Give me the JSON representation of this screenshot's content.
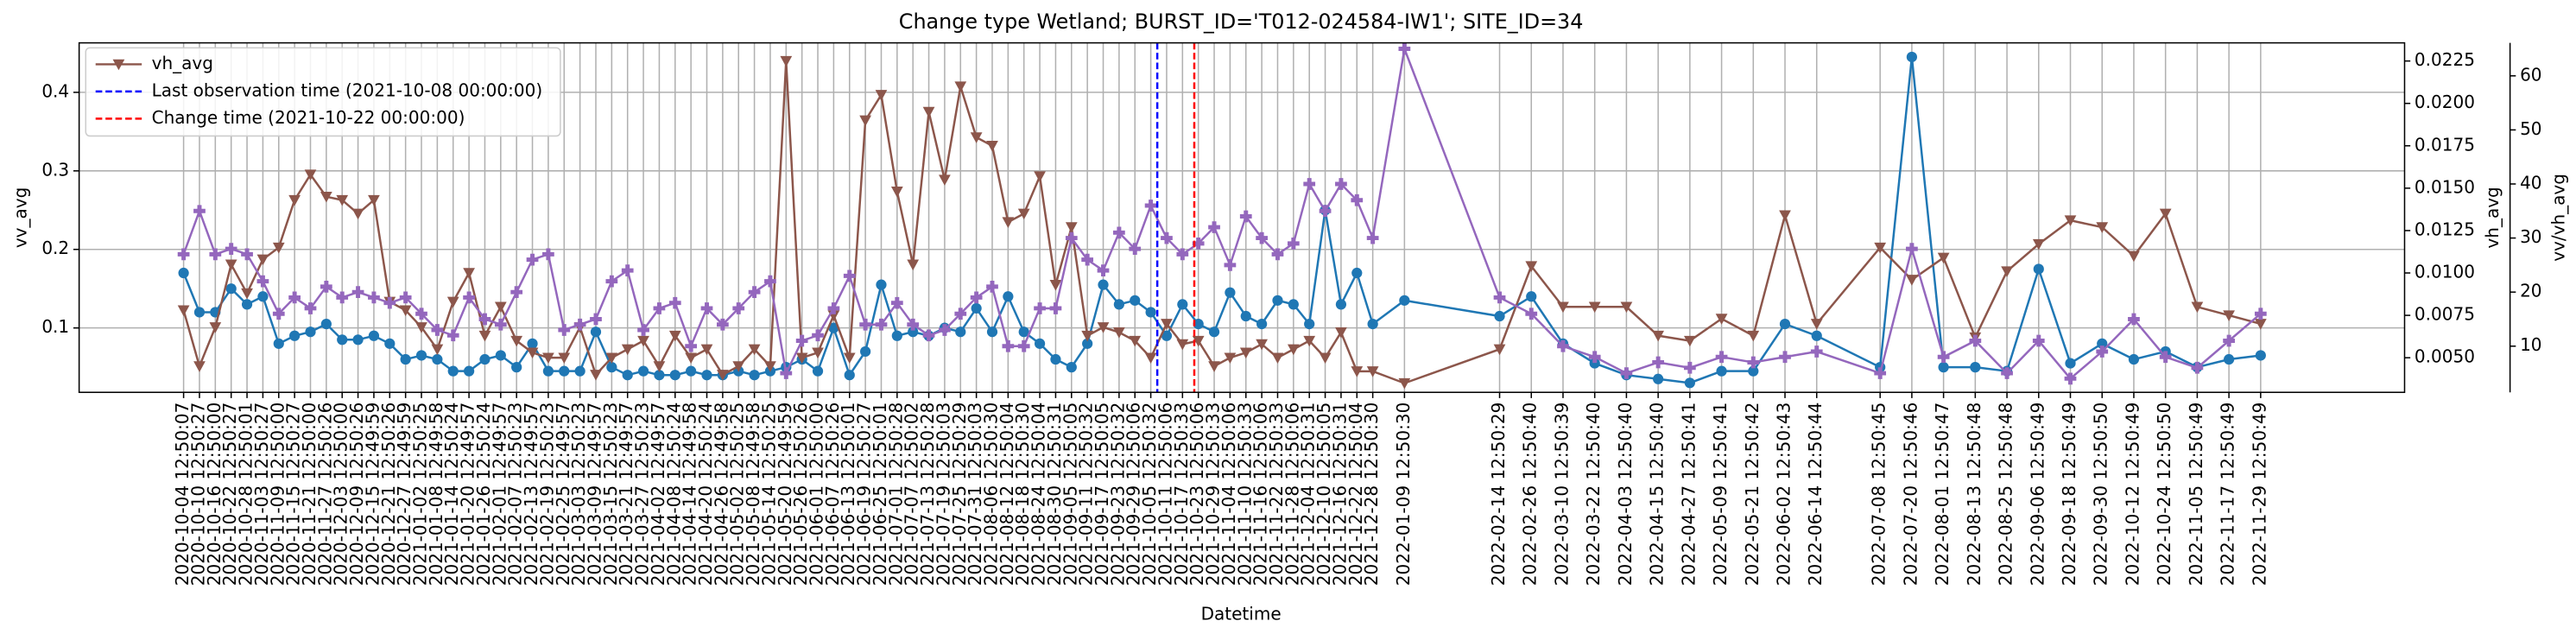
{
  "chart_data": {
    "type": "line",
    "title": "Change type Wetland; BURST_ID='T012-024584-IW1'; SITE_ID=34",
    "x_label": "Datetime",
    "y_label": "vv_avg",
    "y2_label": "vh_avg",
    "y3_label": "vv/vh_avg",
    "x": [
      "2020-10-04 12:50:07",
      "2020-10-10 12:50:27",
      "2020-10-16 12:50:00",
      "2020-10-22 12:50:27",
      "2020-10-28 12:50:01",
      "2020-11-03 12:50:27",
      "2020-11-09 12:50:00",
      "2020-11-15 12:50:27",
      "2020-11-21 12:50:00",
      "2020-11-27 12:50:26",
      "2020-12-03 12:50:00",
      "2020-12-09 12:50:26",
      "2020-12-15 12:49:59",
      "2020-12-21 12:50:26",
      "2020-12-27 12:49:59",
      "2021-01-02 12:50:25",
      "2021-01-08 12:49:58",
      "2021-01-14 12:50:24",
      "2021-01-20 12:49:57",
      "2021-01-26 12:50:24",
      "2021-02-01 12:49:57",
      "2021-02-07 12:50:23",
      "2021-02-13 12:49:57",
      "2021-02-19 12:50:23",
      "2021-02-25 12:49:57",
      "2021-03-03 12:50:23",
      "2021-03-09 12:49:57",
      "2021-03-15 12:50:23",
      "2021-03-21 12:49:57",
      "2021-03-27 12:50:23",
      "2021-04-02 12:49:57",
      "2021-04-08 12:50:24",
      "2021-04-14 12:49:58",
      "2021-04-20 12:50:24",
      "2021-04-26 12:49:58",
      "2021-05-02 12:50:25",
      "2021-05-08 12:49:58",
      "2021-05-14 12:50:25",
      "2021-05-20 12:49:59",
      "2021-05-26 12:50:26",
      "2021-06-01 12:50:00",
      "2021-06-07 12:50:26",
      "2021-06-13 12:50:01",
      "2021-06-19 12:50:27",
      "2021-06-25 12:50:01",
      "2021-07-01 12:50:28",
      "2021-07-07 12:50:02",
      "2021-07-13 12:50:28",
      "2021-07-19 12:50:03",
      "2021-07-25 12:50:29",
      "2021-07-31 12:50:03",
      "2021-08-06 12:50:30",
      "2021-08-12 12:50:04",
      "2021-08-18 12:50:30",
      "2021-08-24 12:50:04",
      "2021-08-30 12:50:31",
      "2021-09-05 12:50:05",
      "2021-09-11 12:50:32",
      "2021-09-17 12:50:05",
      "2021-09-23 12:50:32",
      "2021-09-29 12:50:06",
      "2021-10-05 12:50:32",
      "2021-10-11 12:50:06",
      "2021-10-17 12:50:33",
      "2021-10-23 12:50:06",
      "2021-10-29 12:50:33",
      "2021-11-04 12:50:06",
      "2021-11-10 12:50:33",
      "2021-11-16 12:50:06",
      "2021-11-22 12:50:33",
      "2021-11-28 12:50:06",
      "2021-12-04 12:50:31",
      "2021-12-10 12:50:05",
      "2021-12-16 12:50:31",
      "2021-12-22 12:50:04",
      "2021-12-28 12:50:30",
      "2022-01-09 12:50:30",
      "2022-02-14 12:50:29",
      "2022-02-26 12:50:40",
      "2022-03-10 12:50:39",
      "2022-03-22 12:50:40",
      "2022-04-03 12:50:40",
      "2022-04-15 12:50:40",
      "2022-04-27 12:50:41",
      "2022-05-09 12:50:41",
      "2022-05-21 12:50:42",
      "2022-06-02 12:50:43",
      "2022-06-14 12:50:44",
      "2022-07-08 12:50:45",
      "2022-07-20 12:50:46",
      "2022-08-01 12:50:47",
      "2022-08-13 12:50:48",
      "2022-08-25 12:50:48",
      "2022-09-06 12:50:49",
      "2022-09-18 12:50:49",
      "2022-09-30 12:50:50",
      "2022-10-12 12:50:49",
      "2022-10-24 12:50:50",
      "2022-11-05 12:50:49",
      "2022-11-17 12:50:49",
      "2022-11-29 12:50:49"
    ],
    "xlim": [
      "2020-08-26 00:00:00",
      "2023-01-23 00:00:00"
    ],
    "series": [
      {
        "name": "vv_avg",
        "color": "#1f77b4",
        "marker": "circle",
        "axis": "y",
        "legend": false,
        "values": [
          0.17,
          0.12,
          0.12,
          0.15,
          0.13,
          0.14,
          0.08,
          0.09,
          0.095,
          0.105,
          0.085,
          0.085,
          0.09,
          0.08,
          0.06,
          0.065,
          0.06,
          0.045,
          0.045,
          0.06,
          0.065,
          0.05,
          0.08,
          0.045,
          0.045,
          0.045,
          0.095,
          0.05,
          0.04,
          0.045,
          0.04,
          0.04,
          0.045,
          0.04,
          0.04,
          0.045,
          0.04,
          0.045,
          0.05,
          0.06,
          0.045,
          0.1,
          0.04,
          0.07,
          0.155,
          0.09,
          0.095,
          0.09,
          0.1,
          0.095,
          0.125,
          0.095,
          0.14,
          0.095,
          0.08,
          0.06,
          0.05,
          0.08,
          0.155,
          0.13,
          0.135,
          0.12,
          0.09,
          0.13,
          0.105,
          0.095,
          0.145,
          0.115,
          0.105,
          0.135,
          0.13,
          0.105,
          0.25,
          0.13,
          0.17,
          0.105,
          0.135,
          0.115,
          0.14,
          0.08,
          0.055,
          0.04,
          0.035,
          0.03,
          0.045,
          0.045,
          0.105,
          0.09,
          0.05,
          0.445,
          0.05,
          0.05,
          0.045,
          0.175,
          0.055,
          0.08,
          0.06,
          0.07,
          0.05,
          0.06,
          0.065
        ]
      },
      {
        "name": "vh_avg",
        "color": "#8c564b",
        "marker": "triangle_down",
        "axis": "y2",
        "legend": true,
        "values": [
          0.0078,
          0.0045,
          0.0068,
          0.0105,
          0.0088,
          0.0108,
          0.0115,
          0.0143,
          0.0158,
          0.0145,
          0.0143,
          0.0135,
          0.0143,
          0.0083,
          0.0078,
          0.0068,
          0.0055,
          0.0083,
          0.01,
          0.0063,
          0.008,
          0.006,
          0.0053,
          0.005,
          0.005,
          0.0068,
          0.004,
          0.005,
          0.0055,
          0.006,
          0.0045,
          0.0063,
          0.005,
          0.0055,
          0.004,
          0.0045,
          0.0055,
          0.0045,
          0.0225,
          0.005,
          0.0053,
          0.0075,
          0.005,
          0.019,
          0.0205,
          0.0148,
          0.0105,
          0.0195,
          0.0155,
          0.021,
          0.018,
          0.0175,
          0.013,
          0.0135,
          0.0157,
          0.0093,
          0.0127,
          0.0063,
          0.0068,
          0.0065,
          0.006,
          0.005,
          0.007,
          0.0058,
          0.006,
          0.0045,
          0.005,
          0.0053,
          0.0058,
          0.005,
          0.0055,
          0.006,
          0.005,
          0.0065,
          0.0042,
          0.0042,
          0.0035,
          0.0055,
          0.0104,
          0.008,
          0.008,
          0.008,
          0.0063,
          0.006,
          0.0073,
          0.0063,
          0.0134,
          0.007,
          0.0115,
          0.0096,
          0.0109,
          0.0062,
          0.0101,
          0.0117,
          0.0131,
          0.0127,
          0.011,
          0.0135,
          0.008,
          0.0075,
          0.007
        ]
      },
      {
        "name": "vv/vh_avg",
        "color": "#9467bd",
        "marker": "plus_filled",
        "axis": "y3",
        "legend": false,
        "values": [
          27,
          35,
          27,
          28,
          27,
          22,
          16,
          19,
          17,
          21,
          19,
          20,
          19,
          18,
          19,
          16,
          13,
          12,
          19,
          15,
          14,
          20,
          26,
          27,
          13,
          14,
          15,
          22,
          24,
          13,
          17,
          18,
          10,
          17,
          14,
          17,
          20,
          22,
          5,
          11,
          12,
          17,
          23,
          14,
          14,
          18,
          14,
          12,
          13,
          16,
          19,
          21,
          10,
          10,
          17,
          17,
          30,
          26,
          24,
          31,
          28,
          36,
          30,
          27,
          29,
          32,
          25,
          34,
          30,
          27,
          29,
          40,
          35,
          40,
          37,
          30,
          65,
          19,
          16,
          10,
          8,
          5,
          7,
          6,
          8,
          7,
          8,
          9,
          5,
          28,
          8,
          11,
          5,
          11,
          4,
          9,
          15,
          8,
          6,
          11,
          16
        ]
      }
    ],
    "ylim": [
      0.018,
      0.463
    ],
    "yticks": [
      0.1,
      0.2,
      0.3,
      0.4
    ],
    "y2lim": [
      0.00296,
      0.02357
    ],
    "y2ticks": [
      {
        "value": 0.005,
        "label": "0.0050"
      },
      {
        "value": 0.0075,
        "label": "0.0075"
      },
      {
        "value": 0.01,
        "label": "0.0100"
      },
      {
        "value": 0.0125,
        "label": "0.0125"
      },
      {
        "value": 0.015,
        "label": "0.0150"
      },
      {
        "value": 0.0175,
        "label": "0.0175"
      },
      {
        "value": 0.02,
        "label": "0.0200"
      },
      {
        "value": 0.0225,
        "label": "0.0225"
      }
    ],
    "y3lim": [
      1.46,
      66.1
    ],
    "y3ticks": [
      10,
      20,
      30,
      40,
      50,
      60
    ],
    "vlines": [
      {
        "x": "2021-10-08 00:00:00",
        "color": "#0000ff",
        "label": "Last observation time (2021-10-08 00:00:00)"
      },
      {
        "x": "2021-10-22 00:00:00",
        "color": "#ff0000",
        "label": "Change time (2021-10-22 00:00:00)"
      }
    ],
    "grid": true,
    "legend": "upper left"
  }
}
